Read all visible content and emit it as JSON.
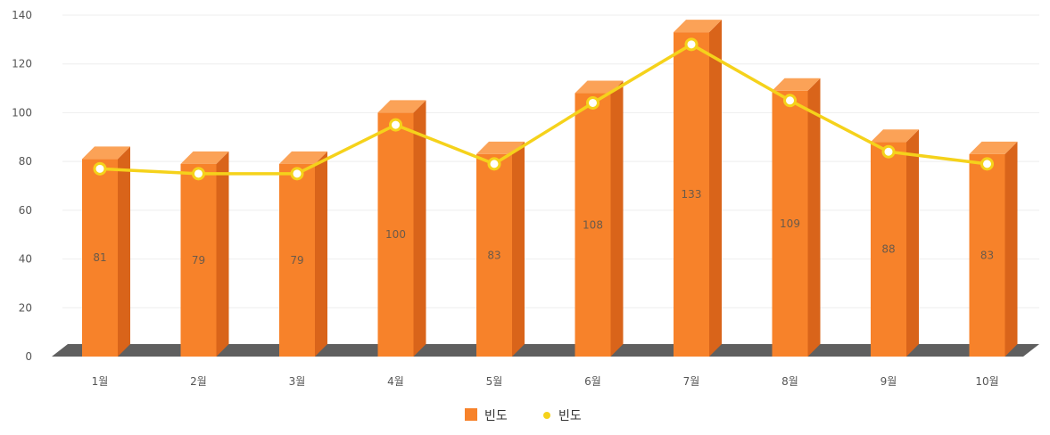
{
  "chart_data": {
    "type": "bar",
    "categories": [
      "1월",
      "2월",
      "3월",
      "4월",
      "5월",
      "6월",
      "7월",
      "8월",
      "9월",
      "10월"
    ],
    "series": [
      {
        "name": "빈도",
        "kind": "bar",
        "values": [
          81,
          79,
          79,
          100,
          83,
          108,
          133,
          109,
          88,
          83
        ]
      },
      {
        "name": "빈도",
        "kind": "line",
        "values": [
          77,
          75,
          75,
          95,
          79,
          104,
          128,
          105,
          84,
          79
        ]
      }
    ],
    "data_labels": [
      "81",
      "79",
      "79",
      "100",
      "83",
      "108",
      "133",
      "109",
      "88",
      "83"
    ],
    "ylim": [
      0,
      140
    ],
    "yticks": [
      0,
      20,
      40,
      60,
      80,
      100,
      120,
      140
    ],
    "grid": true,
    "legend": "bottom-center",
    "colors": {
      "bar_front": "#f7822a",
      "bar_side": "#d9641a",
      "bar_top": "#fba257",
      "floor": "#5f5f5f",
      "line": "#f5d21b",
      "marker_fill": "#ffffff",
      "grid": "#eeeeee"
    }
  }
}
